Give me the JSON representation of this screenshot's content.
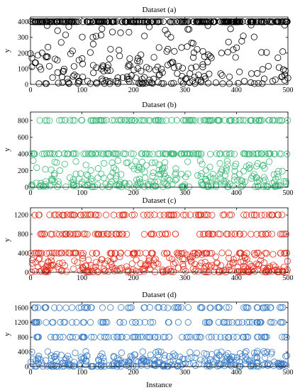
{
  "xlabel": "Instance",
  "chart_data": [
    {
      "type": "scatter",
      "title": "Dataset (a)",
      "ylabel": "y",
      "xlim": [
        0,
        500
      ],
      "ylim": [
        0,
        430
      ],
      "xticks": [
        0,
        100,
        200,
        300,
        400,
        500
      ],
      "yticks": [
        0,
        100,
        200,
        300,
        400
      ],
      "color": "#000000",
      "series": [
        {
          "n": 500,
          "levels": [
            400
          ],
          "level_share": 0.5,
          "low_range": [
            5,
            380
          ]
        }
      ]
    },
    {
      "type": "scatter",
      "title": "Dataset (b)",
      "ylabel": "y",
      "xlim": [
        0,
        500
      ],
      "ylim": [
        0,
        900
      ],
      "xticks": [
        0,
        100,
        200,
        300,
        400,
        500
      ],
      "yticks": [
        0,
        200,
        400,
        600,
        800
      ],
      "color": "#3cb878",
      "series": [
        {
          "n": 500,
          "levels": [
            800,
            400
          ],
          "level_share": 0.45,
          "low_range": [
            5,
            320
          ]
        }
      ]
    },
    {
      "type": "scatter",
      "title": "Dataset (c)",
      "ylabel": "y",
      "xlim": [
        0,
        500
      ],
      "ylim": [
        0,
        1350
      ],
      "xticks": [
        0,
        100,
        200,
        300,
        400,
        500
      ],
      "yticks": [
        0,
        400,
        800,
        1200
      ],
      "color": "#e0301e",
      "series": [
        {
          "n": 500,
          "levels": [
            1200,
            800,
            400
          ],
          "level_share": 0.5,
          "low_range": [
            5,
            380
          ]
        }
      ]
    },
    {
      "type": "scatter",
      "title": "Dataset (d)",
      "ylabel": "y",
      "xlim": [
        0,
        500
      ],
      "ylim": [
        0,
        1750
      ],
      "xticks": [
        0,
        100,
        200,
        300,
        400,
        500
      ],
      "yticks": [
        0,
        400,
        800,
        1200,
        1600
      ],
      "color": "#3a7cc4",
      "series": [
        {
          "n": 500,
          "levels": [
            1600,
            1200,
            800
          ],
          "level_share": 0.4,
          "low_range": [
            5,
            420
          ]
        }
      ]
    }
  ]
}
